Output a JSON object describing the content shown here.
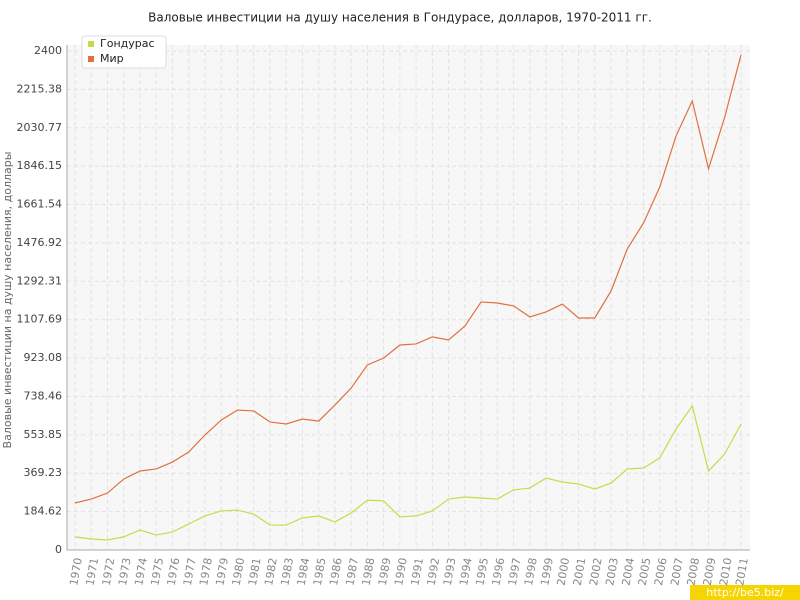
{
  "chart_data": {
    "type": "line",
    "title": "Валовые инвестиции на душу населения в Гондурасе, долларов, 1970-2011 гг.",
    "y_label": "Валовые инвестиции на душу населения, доллары",
    "watermark": "http://be5.biz/",
    "categories": [
      "1970",
      "1971",
      "1972",
      "1973",
      "1974",
      "1975",
      "1976",
      "1977",
      "1978",
      "1979",
      "1980",
      "1981",
      "1982",
      "1983",
      "1984",
      "1985",
      "1986",
      "1987",
      "1988",
      "1989",
      "1990",
      "1991",
      "1992",
      "1993",
      "1994",
      "1995",
      "1996",
      "1997",
      "1998",
      "1999",
      "2000",
      "2001",
      "2002",
      "2003",
      "2004",
      "2005",
      "2006",
      "2007",
      "2008",
      "2009",
      "2010",
      "2011"
    ],
    "series": [
      {
        "name": "Гондурас",
        "color": "#c5dc4a",
        "values": [
          63,
          53,
          48,
          63,
          96,
          72,
          87,
          125,
          164,
          188,
          192,
          173,
          120,
          120,
          154,
          164,
          135,
          178,
          240,
          236,
          159,
          164,
          188,
          245,
          255,
          250,
          245,
          289,
          298,
          346,
          327,
          317,
          293,
          322,
          390,
          394,
          443,
          582,
          693,
          380,
          462,
          606
        ]
      },
      {
        "name": "Мир",
        "color": "#e07040",
        "values": [
          226,
          245,
          274,
          341,
          380,
          390,
          423,
          471,
          553,
          625,
          673,
          669,
          616,
          606,
          630,
          620,
          697,
          779,
          890,
          923,
          986,
          991,
          1025,
          1010,
          1077,
          1193,
          1188,
          1174,
          1121,
          1145,
          1183,
          1116,
          1116,
          1246,
          1448,
          1573,
          1746,
          1991,
          2160,
          1833,
          2083,
          2381
        ]
      }
    ],
    "ylim": [
      0,
      2400
    ],
    "yticks": [
      0,
      184.62,
      369.23,
      553.85,
      738.46,
      923.08,
      1107.69,
      1292.31,
      1476.92,
      1661.54,
      1846.15,
      2030.77,
      2215.38,
      2400
    ],
    "grid": true,
    "legend": "top-left"
  }
}
